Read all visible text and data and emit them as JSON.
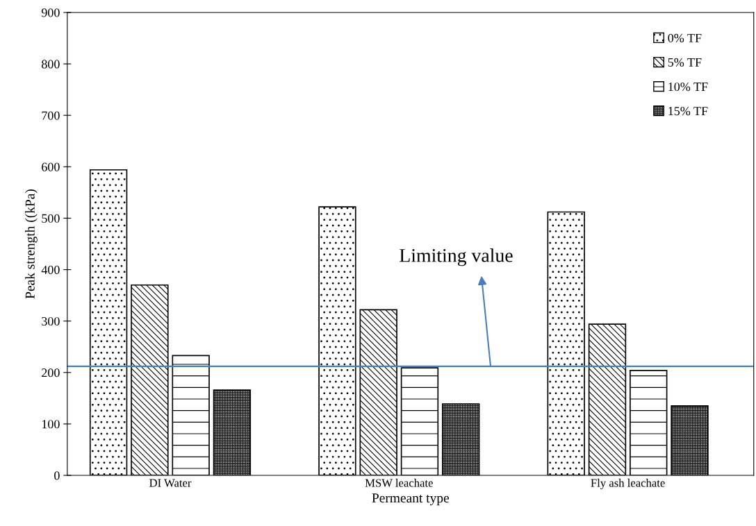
{
  "chart_data": {
    "type": "bar",
    "xlabel": "Permeant type",
    "ylabel": "Peak strength ((kPa)",
    "categories": [
      "DI Water",
      "MSW leachate",
      "Fly ash leachate"
    ],
    "series": [
      {
        "name": "0% TF",
        "color": "#000000",
        "values": [
          594,
          522,
          512
        ]
      },
      {
        "name": "5% TF",
        "color": "#000000",
        "values": [
          370,
          322,
          294
        ]
      },
      {
        "name": "10% TF",
        "color": "#000000",
        "values": [
          233,
          209,
          204
        ]
      },
      {
        "name": "15% TF",
        "color": "#000000",
        "values": [
          166,
          139,
          135
        ]
      }
    ],
    "ylim": [
      0,
      900
    ],
    "yticks": [
      0,
      100,
      200,
      300,
      400,
      500,
      600,
      700,
      800,
      900
    ],
    "ref_lines": [
      {
        "axis": "y",
        "value": 212,
        "label": "Limiting value",
        "color": "#4a7ebb"
      }
    ],
    "grid": false,
    "legend": "top right"
  }
}
